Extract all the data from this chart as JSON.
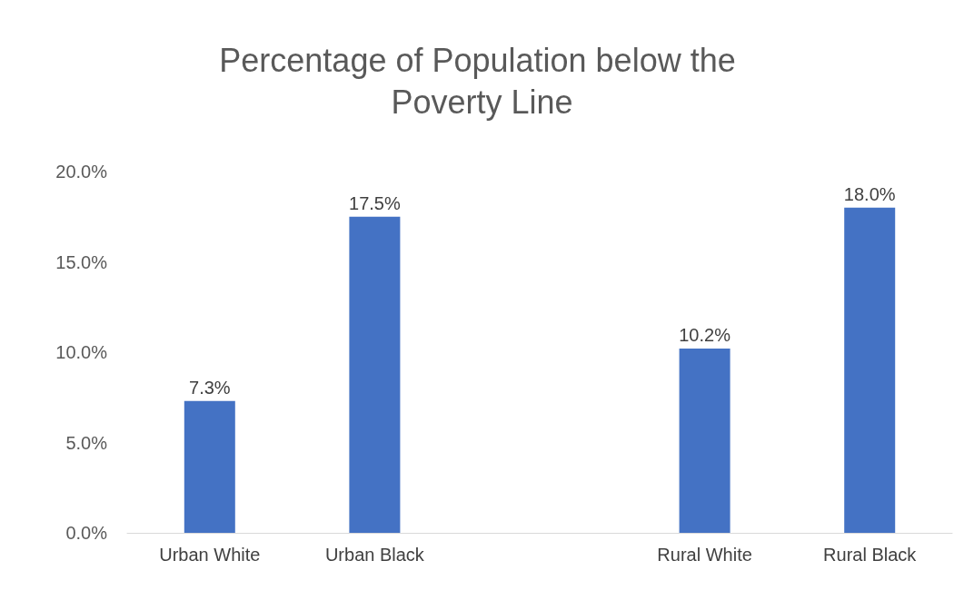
{
  "chart_data": {
    "type": "bar",
    "title": "Percentage of Population below the Poverty Line",
    "categories": [
      "Urban White",
      "Urban Black",
      null,
      "Rural White",
      "Rural Black"
    ],
    "values": [
      7.3,
      17.5,
      null,
      10.2,
      18.0
    ],
    "value_labels": [
      "7.3%",
      "17.5%",
      null,
      "10.2%",
      "18.0%"
    ],
    "color": "#4472c4",
    "ylim": [
      0,
      20
    ],
    "yticks": [
      {
        "value": 0,
        "label": "0.0%"
      },
      {
        "value": 5,
        "label": "5.0%"
      },
      {
        "value": 10,
        "label": "10.0%"
      },
      {
        "value": 15,
        "label": "15.0%"
      },
      {
        "value": 20,
        "label": "20.0%"
      }
    ],
    "grid": false
  }
}
